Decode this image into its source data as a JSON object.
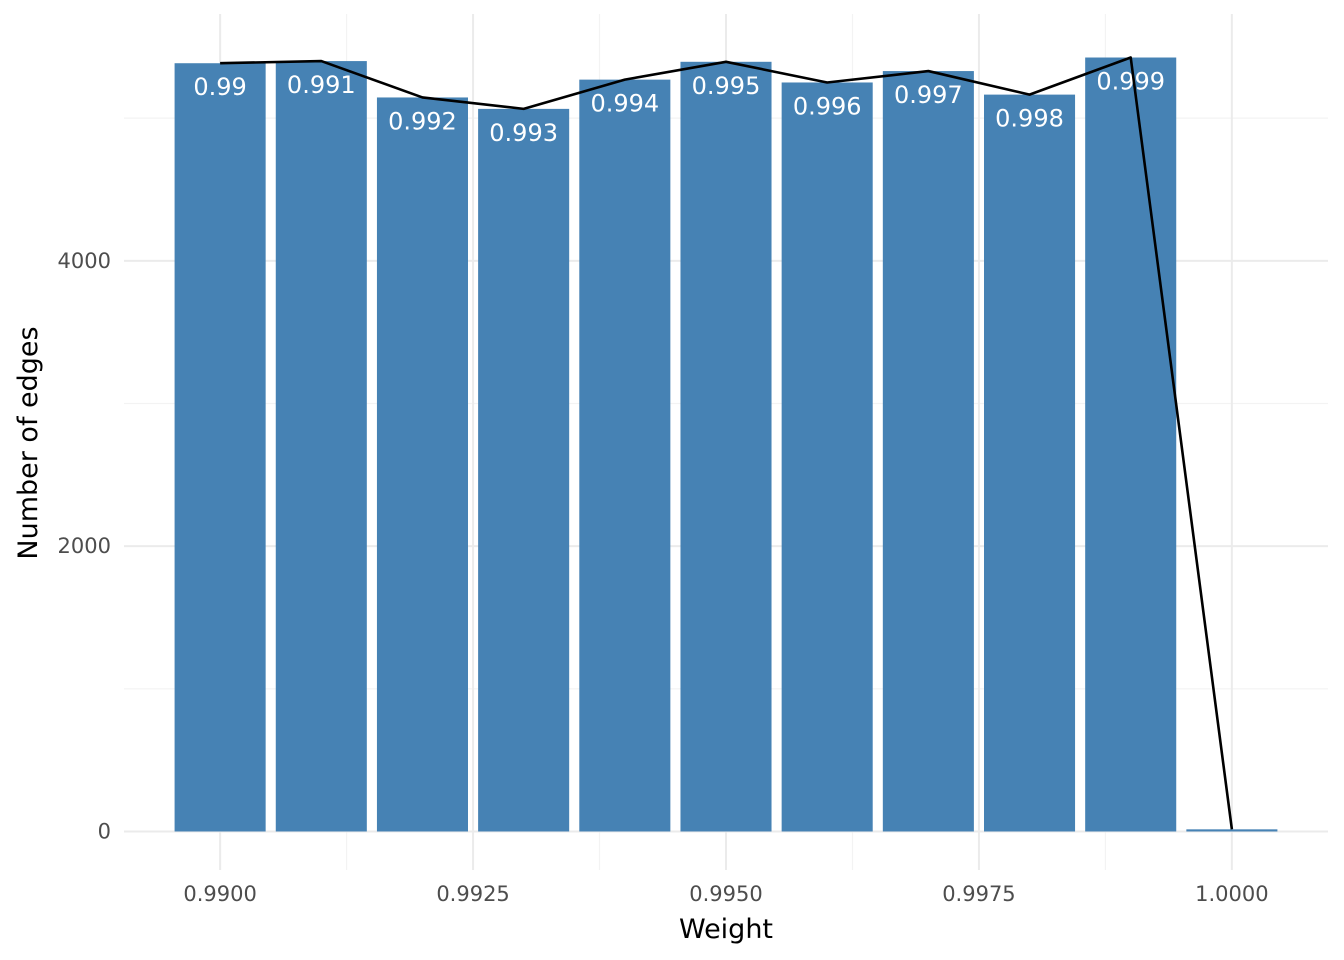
{
  "chart_data": {
    "type": "bar",
    "title": "",
    "xlabel": "Weight",
    "ylabel": "Number of edges",
    "x": [
      0.99,
      0.991,
      0.992,
      0.993,
      0.994,
      0.995,
      0.996,
      0.997,
      0.998,
      0.999,
      1.0
    ],
    "values": [
      5385,
      5400,
      5145,
      5065,
      5270,
      5395,
      5250,
      5330,
      5165,
      5425,
      15
    ],
    "bar_labels": [
      "0.99",
      "0.991",
      "0.992",
      "0.993",
      "0.994",
      "0.995",
      "0.996",
      "0.997",
      "0.998",
      "0.999",
      ""
    ],
    "line_overlay": true,
    "xlim": [
      0.98905,
      1.00095
    ],
    "ylim": [
      -270,
      5730
    ],
    "x_ticks": [
      0.99,
      0.9925,
      0.995,
      0.9975,
      1.0
    ],
    "x_tick_labels": [
      "0.9900",
      "0.9925",
      "0.9950",
      "0.9975",
      "1.0000"
    ],
    "y_ticks": [
      0,
      2000,
      4000
    ],
    "y_tick_labels": [
      "0",
      "2000",
      "4000"
    ],
    "grid": true,
    "legend": "none",
    "colors": {
      "bar": "#4682b4",
      "line": "#000000",
      "grid": "#ebebeb",
      "bar_label": "#ffffff"
    }
  }
}
